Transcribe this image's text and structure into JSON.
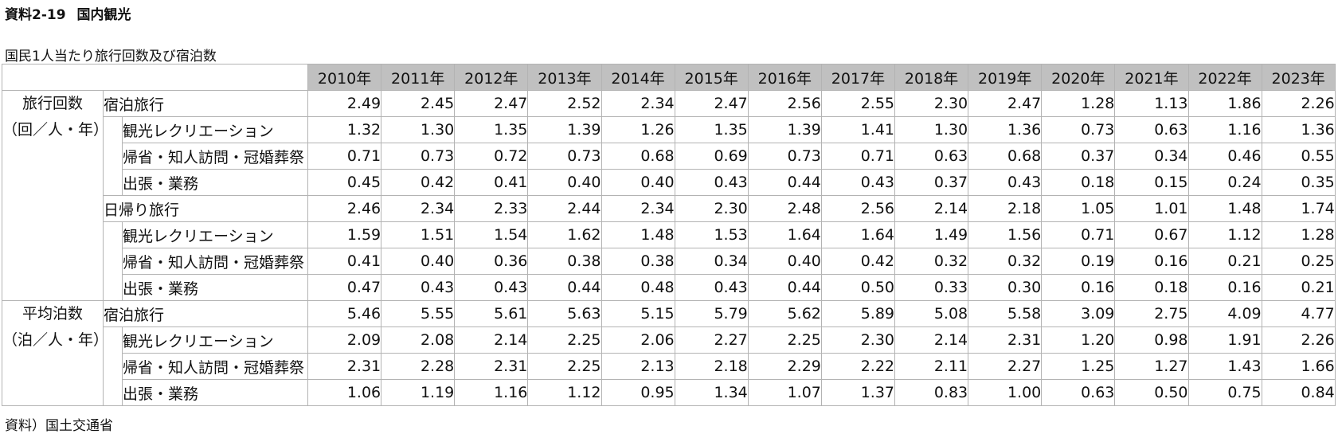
{
  "title": {
    "code": "資料2-19",
    "text": "国内観光"
  },
  "caption": "国民1人当たり旅行回数及び宿泊数",
  "source": "資料）国土交通省",
  "years": [
    "2010年",
    "2011年",
    "2012年",
    "2013年",
    "2014年",
    "2015年",
    "2016年",
    "2017年",
    "2018年",
    "2019年",
    "2020年",
    "2021年",
    "2022年",
    "2023年"
  ],
  "groups": [
    {
      "label_line1": "旅行回数",
      "label_line2": "（回／人・年）",
      "sections": [
        {
          "label": "宿泊旅行",
          "values": [
            "2.49",
            "2.45",
            "2.47",
            "2.52",
            "2.34",
            "2.47",
            "2.56",
            "2.55",
            "2.30",
            "2.47",
            "1.28",
            "1.13",
            "1.86",
            "2.26"
          ],
          "items": [
            {
              "label": "観光レクリエーション",
              "values": [
                "1.32",
                "1.30",
                "1.35",
                "1.39",
                "1.26",
                "1.35",
                "1.39",
                "1.41",
                "1.30",
                "1.36",
                "0.73",
                "0.63",
                "1.16",
                "1.36"
              ]
            },
            {
              "label": "帰省・知人訪問・冠婚葬祭",
              "values": [
                "0.71",
                "0.73",
                "0.72",
                "0.73",
                "0.68",
                "0.69",
                "0.73",
                "0.71",
                "0.63",
                "0.68",
                "0.37",
                "0.34",
                "0.46",
                "0.55"
              ]
            },
            {
              "label": "出張・業務",
              "values": [
                "0.45",
                "0.42",
                "0.41",
                "0.40",
                "0.40",
                "0.43",
                "0.44",
                "0.43",
                "0.37",
                "0.43",
                "0.18",
                "0.15",
                "0.24",
                "0.35"
              ]
            }
          ]
        },
        {
          "label": "日帰り旅行",
          "values": [
            "2.46",
            "2.34",
            "2.33",
            "2.44",
            "2.34",
            "2.30",
            "2.48",
            "2.56",
            "2.14",
            "2.18",
            "1.05",
            "1.01",
            "1.48",
            "1.74"
          ],
          "items": [
            {
              "label": "観光レクリエーション",
              "values": [
                "1.59",
                "1.51",
                "1.54",
                "1.62",
                "1.48",
                "1.53",
                "1.64",
                "1.64",
                "1.49",
                "1.56",
                "0.71",
                "0.67",
                "1.12",
                "1.28"
              ]
            },
            {
              "label": "帰省・知人訪問・冠婚葬祭",
              "values": [
                "0.41",
                "0.40",
                "0.36",
                "0.38",
                "0.38",
                "0.34",
                "0.40",
                "0.42",
                "0.32",
                "0.32",
                "0.19",
                "0.16",
                "0.21",
                "0.25"
              ]
            },
            {
              "label": "出張・業務",
              "values": [
                "0.47",
                "0.43",
                "0.43",
                "0.44",
                "0.48",
                "0.43",
                "0.44",
                "0.50",
                "0.33",
                "0.30",
                "0.16",
                "0.18",
                "0.16",
                "0.21"
              ]
            }
          ]
        }
      ]
    },
    {
      "label_line1": "平均泊数",
      "label_line2": "（泊／人・年）",
      "sections": [
        {
          "label": "宿泊旅行",
          "values": [
            "5.46",
            "5.55",
            "5.61",
            "5.63",
            "5.15",
            "5.79",
            "5.62",
            "5.89",
            "5.08",
            "5.58",
            "3.09",
            "2.75",
            "4.09",
            "4.77"
          ],
          "items": [
            {
              "label": "観光レクリエーション",
              "values": [
                "2.09",
                "2.08",
                "2.14",
                "2.25",
                "2.06",
                "2.27",
                "2.25",
                "2.30",
                "2.14",
                "2.31",
                "1.20",
                "0.98",
                "1.91",
                "2.26"
              ]
            },
            {
              "label": "帰省・知人訪問・冠婚葬祭",
              "values": [
                "2.31",
                "2.28",
                "2.31",
                "2.25",
                "2.13",
                "2.18",
                "2.29",
                "2.22",
                "2.11",
                "2.27",
                "1.25",
                "1.27",
                "1.43",
                "1.66"
              ]
            },
            {
              "label": "出張・業務",
              "values": [
                "1.06",
                "1.19",
                "1.16",
                "1.12",
                "0.95",
                "1.34",
                "1.07",
                "1.37",
                "0.83",
                "1.00",
                "0.63",
                "0.50",
                "0.75",
                "0.84"
              ]
            }
          ]
        }
      ]
    }
  ]
}
